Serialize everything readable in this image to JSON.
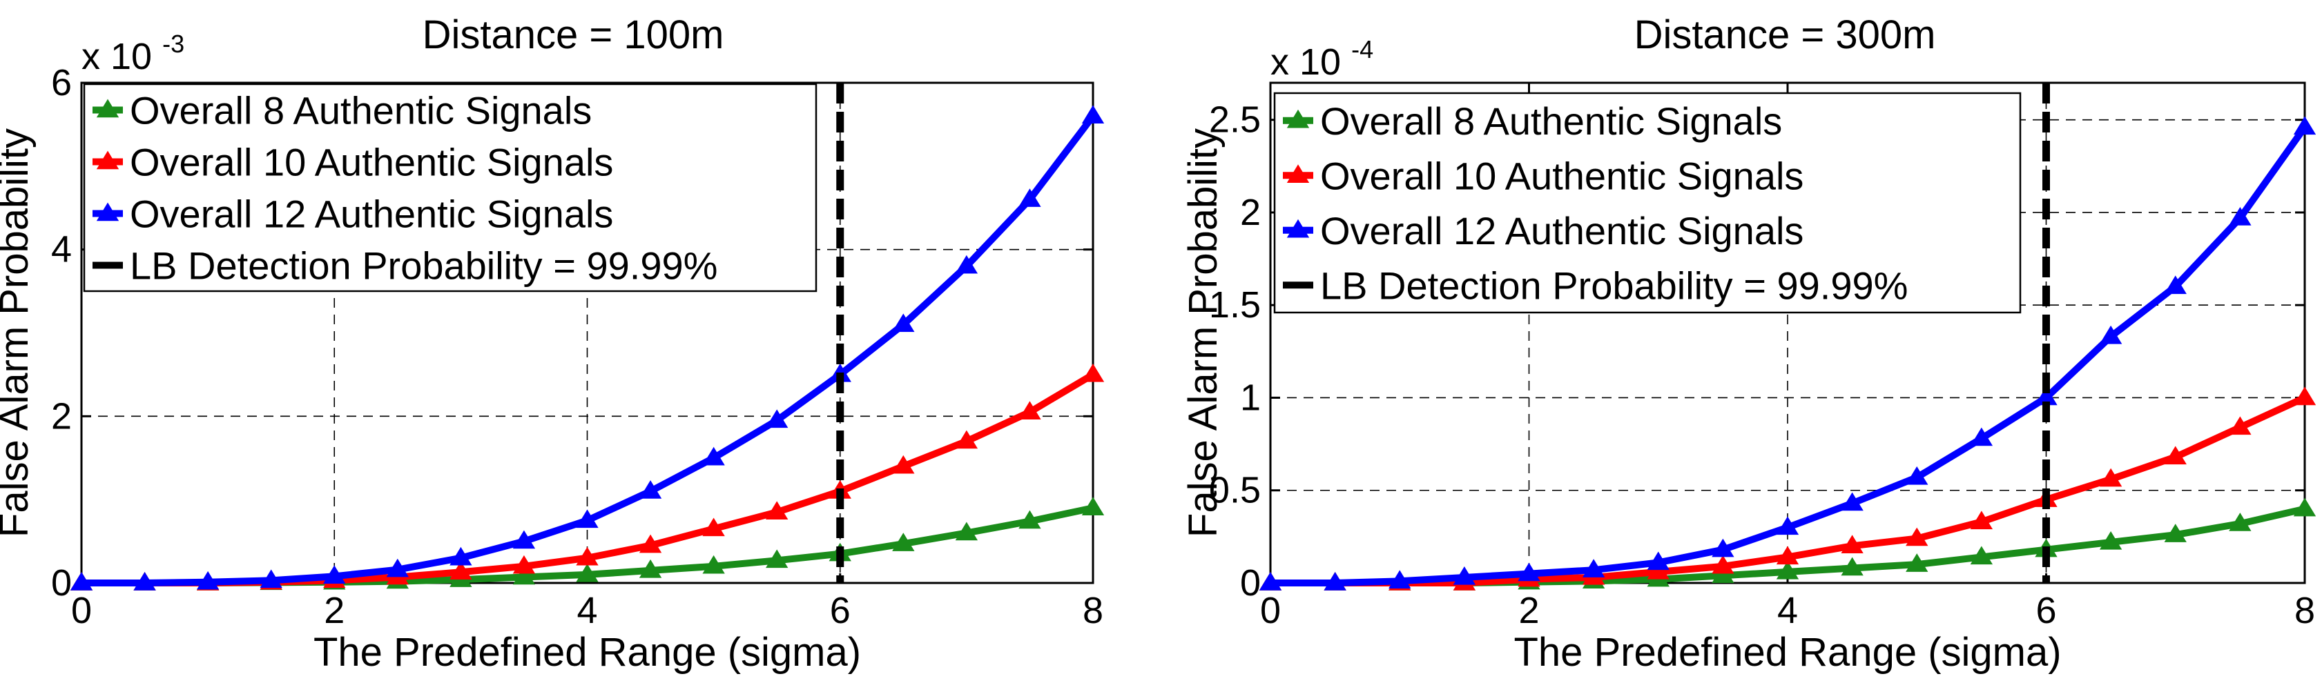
{
  "chart_data": [
    {
      "type": "line",
      "title": "Distance = 100m",
      "xlabel": "The Predefined Range (sigma)",
      "ylabel": "False Alarm Probability",
      "exponent_label": {
        "base": "x 10",
        "power": "-3"
      },
      "xlim": [
        0,
        8
      ],
      "ylim": [
        0,
        0.006
      ],
      "xticks": [
        0,
        2,
        4,
        6,
        8
      ],
      "xtick_labels": [
        "0",
        "2",
        "4",
        "6",
        "8"
      ],
      "yticks": [
        0,
        0.002,
        0.004,
        0.006
      ],
      "ytick_labels": [
        "0",
        "2",
        "4",
        "6"
      ],
      "grid": true,
      "legend_position": "top-left",
      "x": [
        0,
        0.5,
        1,
        1.5,
        2,
        2.5,
        3,
        3.5,
        4,
        4.5,
        5,
        5.5,
        6,
        6.5,
        7,
        7.5,
        8
      ],
      "series": [
        {
          "name": "Overall 8 Authentic Signals",
          "color": "#1a8c1a",
          "values": [
            0,
            0,
            0,
            5e-06,
            1e-05,
            2e-05,
            4e-05,
            7e-05,
            0.0001,
            0.00015,
            0.0002,
            0.00027,
            0.00035,
            0.00047,
            0.0006,
            0.00074,
            0.0009
          ]
        },
        {
          "name": "Overall 10 Authentic Signals",
          "color": "#ff0000",
          "values": [
            0,
            0,
            0,
            1e-05,
            3e-05,
            7e-05,
            0.00013,
            0.0002,
            0.0003,
            0.00045,
            0.00065,
            0.00085,
            0.0011,
            0.0014,
            0.0017,
            0.00205,
            0.0025
          ]
        },
        {
          "name": "Overall 12 Authentic Signals",
          "color": "#0000ff",
          "values": [
            0,
            0,
            1e-05,
            3e-05,
            8e-05,
            0.00016,
            0.0003,
            0.0005,
            0.00075,
            0.0011,
            0.0015,
            0.00195,
            0.0025,
            0.0031,
            0.0038,
            0.0046,
            0.0056
          ]
        }
      ],
      "detection_line": {
        "name": "LB Detection Probability = 99.99%",
        "x": 6,
        "color": "#000000"
      }
    },
    {
      "type": "line",
      "title": "Distance = 300m",
      "xlabel": "The Predefined Range (sigma)",
      "ylabel": "False Alarm Probability",
      "exponent_label": {
        "base": "x 10",
        "power": "-4"
      },
      "xlim": [
        0,
        8
      ],
      "ylim": [
        0,
        0.00027
      ],
      "xticks": [
        0,
        2,
        4,
        6,
        8
      ],
      "xtick_labels": [
        "0",
        "2",
        "4",
        "6",
        "8"
      ],
      "yticks": [
        0,
        5e-05,
        0.0001,
        0.00015,
        0.0002,
        0.00025
      ],
      "ytick_labels": [
        "0",
        "0.5",
        "1",
        "1.5",
        "2",
        "2.5"
      ],
      "grid": true,
      "legend_position": "top-left",
      "x": [
        0,
        0.5,
        1,
        1.5,
        2,
        2.5,
        3,
        3.5,
        4,
        4.5,
        5,
        5.5,
        6,
        6.5,
        7,
        7.5,
        8
      ],
      "series": [
        {
          "name": "Overall 8 Authentic Signals",
          "color": "#1a8c1a",
          "values": [
            0,
            0,
            0,
            0,
            5e-07,
            1e-06,
            2e-06,
            4e-06,
            6e-06,
            8e-06,
            1e-05,
            1.4e-05,
            1.8e-05,
            2.2e-05,
            2.6e-05,
            3.2e-05,
            4e-05
          ]
        },
        {
          "name": "Overall 10 Authentic Signals",
          "color": "#ff0000",
          "values": [
            0,
            0,
            0,
            0,
            2e-06,
            3e-06,
            6e-06,
            9e-06,
            1.4e-05,
            2e-05,
            2.4e-05,
            3.3e-05,
            4.5e-05,
            5.6e-05,
            6.8e-05,
            8.4e-05,
            0.0001
          ]
        },
        {
          "name": "Overall 12 Authentic Signals",
          "color": "#0000ff",
          "values": [
            0,
            0,
            1e-06,
            3e-06,
            5e-06,
            7e-06,
            1.1e-05,
            1.8e-05,
            3e-05,
            4.3e-05,
            5.7e-05,
            7.8e-05,
            0.0001,
            0.000133,
            0.00016,
            0.000197,
            0.000246
          ]
        }
      ],
      "detection_line": {
        "name": "LB Detection Probability = 99.99%",
        "x": 6,
        "color": "#000000"
      }
    }
  ]
}
